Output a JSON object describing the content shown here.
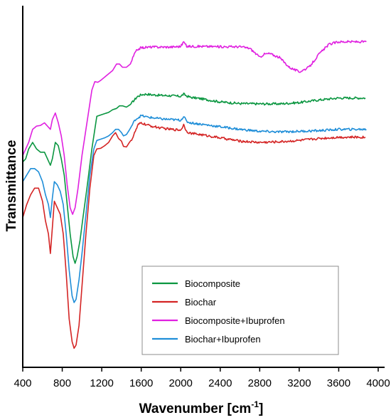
{
  "chart_data": {
    "type": "line",
    "xlabel": "Wavenumber [cm",
    "xlabel_sup": "-1",
    "xlabel_end": "]",
    "ylabel": "Transmittance",
    "xlim": [
      400,
      4000
    ],
    "xticks": [
      "400",
      "800",
      "1200",
      "1600",
      "2000",
      "2400",
      "2800",
      "3200",
      "3600",
      "4000"
    ],
    "ylim": [
      0,
      100
    ],
    "y_ticks_shown": false,
    "grid": false,
    "legend_position": "bottom-right inside plot",
    "series": [
      {
        "name": "Biocomposite",
        "color": "#0a9640",
        "points": [
          [
            400,
            60
          ],
          [
            430,
            61
          ],
          [
            460,
            64
          ],
          [
            500,
            66
          ],
          [
            540,
            64
          ],
          [
            580,
            63
          ],
          [
            620,
            63
          ],
          [
            650,
            61
          ],
          [
            680,
            59
          ],
          [
            700,
            61
          ],
          [
            730,
            66
          ],
          [
            760,
            65
          ],
          [
            790,
            61
          ],
          [
            820,
            56
          ],
          [
            850,
            47
          ],
          [
            880,
            38
          ],
          [
            910,
            31
          ],
          [
            930,
            29
          ],
          [
            950,
            31
          ],
          [
            980,
            36
          ],
          [
            1010,
            43
          ],
          [
            1050,
            52
          ],
          [
            1100,
            64
          ],
          [
            1130,
            70
          ],
          [
            1150,
            74
          ],
          [
            1190,
            74.4
          ],
          [
            1230,
            74.8
          ],
          [
            1270,
            75.2
          ],
          [
            1310,
            76
          ],
          [
            1350,
            76.4
          ],
          [
            1380,
            77.2
          ],
          [
            1410,
            77.2
          ],
          [
            1450,
            76.8
          ],
          [
            1490,
            77.6
          ],
          [
            1530,
            79
          ],
          [
            1560,
            80
          ],
          [
            1600,
            80.6
          ],
          [
            1650,
            80.8
          ],
          [
            1700,
            80.6
          ],
          [
            1800,
            80.4
          ],
          [
            1900,
            80.3
          ],
          [
            2000,
            80.1
          ],
          [
            2030,
            80.8
          ],
          [
            2060,
            80.2
          ],
          [
            2100,
            79.8
          ],
          [
            2200,
            79.4
          ],
          [
            2400,
            78.4
          ],
          [
            2600,
            77.9
          ],
          [
            2800,
            77.8
          ],
          [
            3000,
            77.8
          ],
          [
            3200,
            78.2
          ],
          [
            3400,
            79
          ],
          [
            3600,
            79.6
          ],
          [
            3870,
            79.6
          ]
        ]
      },
      {
        "name": "Biochar",
        "color": "#d42424",
        "points": [
          [
            400,
            43
          ],
          [
            440,
            47
          ],
          [
            480,
            50
          ],
          [
            520,
            52
          ],
          [
            560,
            52
          ],
          [
            600,
            48
          ],
          [
            630,
            42
          ],
          [
            660,
            38
          ],
          [
            680,
            32
          ],
          [
            700,
            40
          ],
          [
            720,
            48
          ],
          [
            750,
            46
          ],
          [
            780,
            44
          ],
          [
            810,
            38
          ],
          [
            840,
            26
          ],
          [
            870,
            12
          ],
          [
            900,
            5
          ],
          [
            920,
            3
          ],
          [
            940,
            4
          ],
          [
            970,
            10
          ],
          [
            1000,
            22
          ],
          [
            1040,
            38
          ],
          [
            1080,
            52
          ],
          [
            1120,
            62
          ],
          [
            1150,
            64
          ],
          [
            1190,
            64.2
          ],
          [
            1230,
            65
          ],
          [
            1270,
            66
          ],
          [
            1310,
            68
          ],
          [
            1340,
            69
          ],
          [
            1370,
            67.2
          ],
          [
            1400,
            66.4
          ],
          [
            1420,
            64.8
          ],
          [
            1450,
            64.6
          ],
          [
            1480,
            66
          ],
          [
            1510,
            67.2
          ],
          [
            1540,
            69.4
          ],
          [
            1570,
            71.4
          ],
          [
            1600,
            72
          ],
          [
            1650,
            71.4
          ],
          [
            1700,
            71
          ],
          [
            1800,
            70.4
          ],
          [
            1900,
            70
          ],
          [
            2000,
            69.8
          ],
          [
            2030,
            71.4
          ],
          [
            2060,
            69.4
          ],
          [
            2100,
            68.8
          ],
          [
            2200,
            68.4
          ],
          [
            2400,
            67.4
          ],
          [
            2600,
            66.4
          ],
          [
            2800,
            66
          ],
          [
            3000,
            66.2
          ],
          [
            3200,
            66.6
          ],
          [
            3400,
            67.2
          ],
          [
            3600,
            67.6
          ],
          [
            3870,
            67.6
          ]
        ]
      },
      {
        "name": "Biocomposite+Ibuprofen",
        "color": "#e020e0",
        "points": [
          [
            400,
            62
          ],
          [
            430,
            64
          ],
          [
            460,
            66
          ],
          [
            500,
            70
          ],
          [
            540,
            71
          ],
          [
            580,
            71.2
          ],
          [
            620,
            72
          ],
          [
            650,
            71
          ],
          [
            680,
            70
          ],
          [
            700,
            73
          ],
          [
            730,
            75
          ],
          [
            760,
            72
          ],
          [
            790,
            68
          ],
          [
            820,
            62
          ],
          [
            850,
            53
          ],
          [
            880,
            46
          ],
          [
            905,
            44
          ],
          [
            930,
            46
          ],
          [
            960,
            52
          ],
          [
            1000,
            62
          ],
          [
            1050,
            72
          ],
          [
            1100,
            82
          ],
          [
            1130,
            84.6
          ],
          [
            1160,
            84.4
          ],
          [
            1190,
            85
          ],
          [
            1230,
            86
          ],
          [
            1270,
            87
          ],
          [
            1310,
            88
          ],
          [
            1350,
            90
          ],
          [
            1380,
            90
          ],
          [
            1410,
            89
          ],
          [
            1450,
            89
          ],
          [
            1490,
            90
          ],
          [
            1530,
            93
          ],
          [
            1560,
            94.4
          ],
          [
            1600,
            95
          ],
          [
            1700,
            95.2
          ],
          [
            1800,
            95.2
          ],
          [
            1900,
            95.2
          ],
          [
            2000,
            95.4
          ],
          [
            2030,
            96.8
          ],
          [
            2060,
            95.4
          ],
          [
            2200,
            95.4
          ],
          [
            2400,
            95.3
          ],
          [
            2600,
            95.3
          ],
          [
            2700,
            94.8
          ],
          [
            2760,
            93.2
          ],
          [
            2800,
            92
          ],
          [
            2840,
            93
          ],
          [
            2900,
            93.2
          ],
          [
            3000,
            92
          ],
          [
            3100,
            89
          ],
          [
            3200,
            87.6
          ],
          [
            3300,
            89
          ],
          [
            3400,
            93
          ],
          [
            3500,
            96
          ],
          [
            3600,
            96.8
          ],
          [
            3700,
            96.8
          ],
          [
            3880,
            96.8
          ]
        ]
      },
      {
        "name": "Biochar+Ibuprofen",
        "color": "#1f8ed8",
        "points": [
          [
            400,
            54
          ],
          [
            440,
            56
          ],
          [
            480,
            58
          ],
          [
            520,
            58
          ],
          [
            560,
            57
          ],
          [
            600,
            54
          ],
          [
            630,
            50
          ],
          [
            660,
            47
          ],
          [
            680,
            43
          ],
          [
            700,
            49
          ],
          [
            720,
            54
          ],
          [
            750,
            53
          ],
          [
            780,
            51
          ],
          [
            810,
            47
          ],
          [
            840,
            38
          ],
          [
            870,
            27
          ],
          [
            900,
            19
          ],
          [
            920,
            17
          ],
          [
            940,
            18
          ],
          [
            970,
            24
          ],
          [
            1000,
            32
          ],
          [
            1040,
            44
          ],
          [
            1080,
            56
          ],
          [
            1120,
            64
          ],
          [
            1150,
            66.6
          ],
          [
            1190,
            67
          ],
          [
            1230,
            67.4
          ],
          [
            1270,
            68
          ],
          [
            1310,
            69
          ],
          [
            1340,
            70
          ],
          [
            1370,
            70
          ],
          [
            1400,
            69
          ],
          [
            1420,
            68
          ],
          [
            1450,
            68.4
          ],
          [
            1480,
            69.8
          ],
          [
            1510,
            71.4
          ],
          [
            1540,
            73
          ],
          [
            1570,
            73.6
          ],
          [
            1600,
            74.2
          ],
          [
            1650,
            73.8
          ],
          [
            1700,
            73.6
          ],
          [
            1800,
            73.2
          ],
          [
            1900,
            73
          ],
          [
            2000,
            72.8
          ],
          [
            2030,
            74
          ],
          [
            2060,
            72.4
          ],
          [
            2100,
            72
          ],
          [
            2200,
            71.6
          ],
          [
            2400,
            70.8
          ],
          [
            2600,
            70
          ],
          [
            2800,
            69.4
          ],
          [
            3000,
            69.2
          ],
          [
            3200,
            69.4
          ],
          [
            3400,
            69.6
          ],
          [
            3600,
            70
          ],
          [
            3880,
            70
          ]
        ]
      }
    ]
  }
}
